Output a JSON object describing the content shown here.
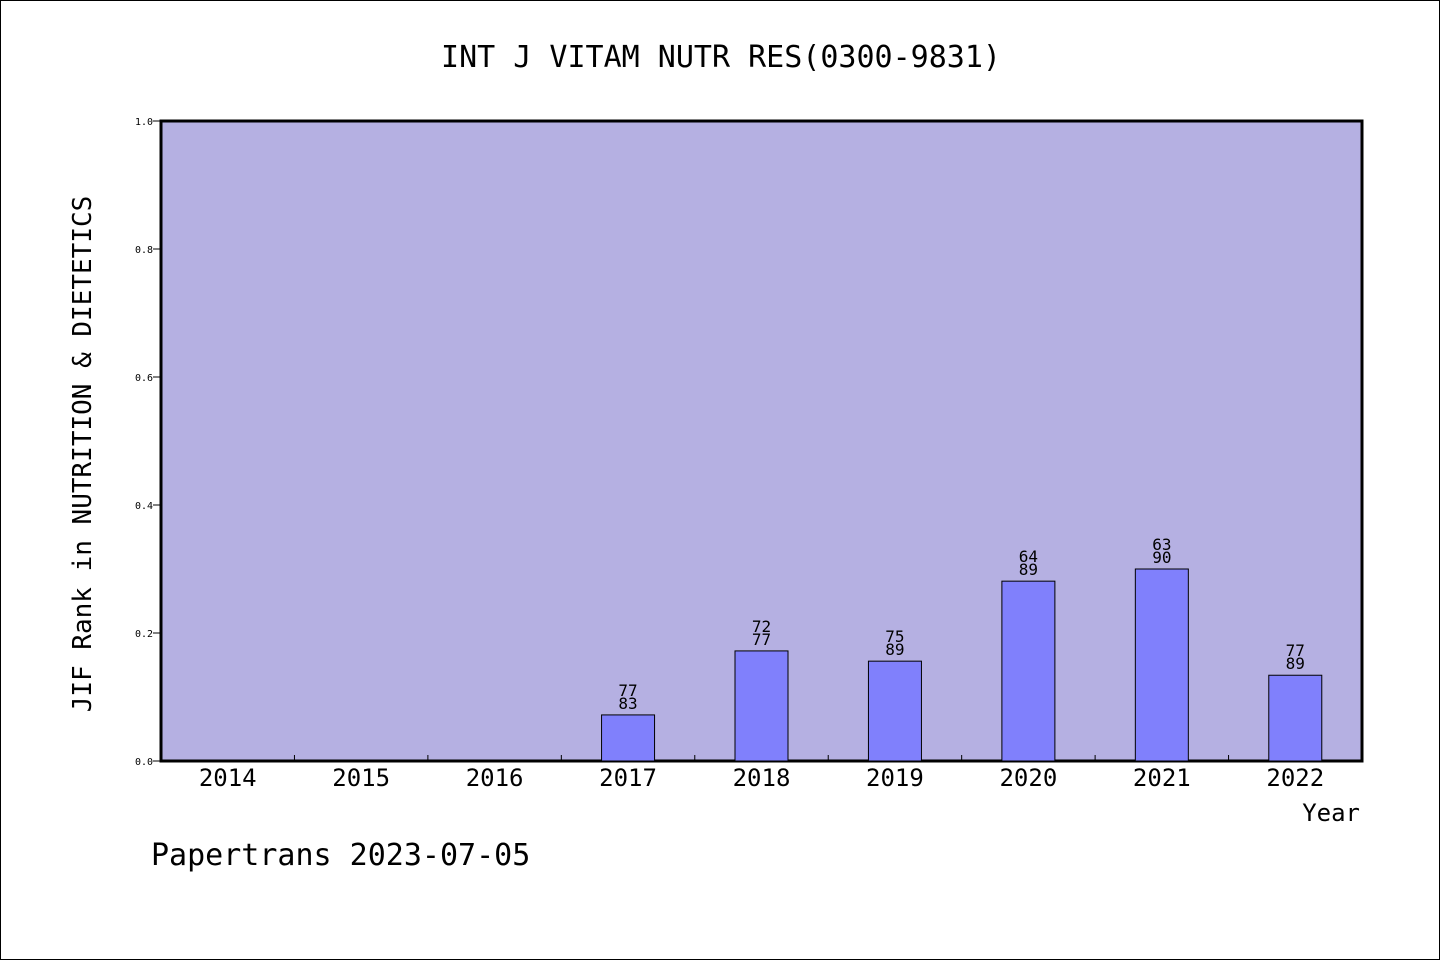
{
  "chart_data": {
    "type": "bar",
    "title": "INT J VITAM NUTR RES(0300-9831)",
    "xlabel": "Year",
    "ylabel": "JIF Rank in NUTRITION & DIETETICS",
    "categories": [
      "2014",
      "2015",
      "2016",
      "2017",
      "2018",
      "2019",
      "2020",
      "2021",
      "2022"
    ],
    "series": [
      {
        "values": [
          null,
          null,
          null,
          0.072,
          0.172,
          0.156,
          0.281,
          0.3,
          0.134
        ]
      }
    ],
    "data_labels": [
      null,
      null,
      null,
      [
        "77",
        "83"
      ],
      [
        "72",
        "77"
      ],
      [
        "75",
        "89"
      ],
      [
        "64",
        "89"
      ],
      [
        "63",
        "90"
      ],
      [
        "77",
        "89"
      ]
    ],
    "ylim": [
      0,
      1.0
    ],
    "yticks": [
      "0.0",
      "0.2",
      "0.4",
      "0.6",
      "0.8",
      "1.0"
    ],
    "grid": false,
    "legend": "none",
    "colors": {
      "plot_background": "#b5b0e2",
      "bar_fill": "#8080fc",
      "bar_stroke": "#000000",
      "axis": "#000000"
    }
  },
  "footer": "Papertrans 2023-07-05"
}
